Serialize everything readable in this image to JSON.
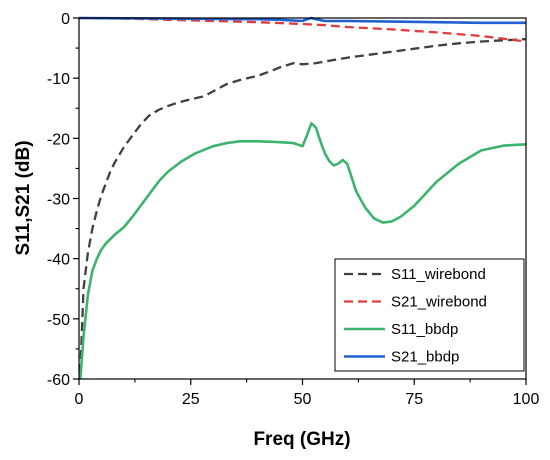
{
  "chart_data": {
    "type": "line",
    "title": "",
    "xlabel": "Freq (GHz)",
    "ylabel": "S11,S21 (dB)",
    "xlim": [
      0,
      100
    ],
    "ylim": [
      -60,
      0
    ],
    "xticks": [
      0,
      25,
      50,
      75,
      100
    ],
    "yticks": [
      0,
      -10,
      -20,
      -30,
      -40,
      -50,
      -60
    ],
    "grid": false,
    "legend_position": "bottom-right",
    "series": [
      {
        "name": "S11_wirebond",
        "color": "#404040",
        "dash": "dashed",
        "x": [
          0.3,
          1,
          2,
          3,
          4,
          5,
          6,
          7,
          8,
          10,
          12,
          14,
          16,
          18,
          20,
          22,
          25,
          28,
          30,
          33,
          36,
          40,
          43,
          45,
          48,
          50,
          53,
          56,
          60,
          65,
          70,
          75,
          80,
          85,
          90,
          95,
          100
        ],
        "y": [
          -59,
          -45,
          -39,
          -35,
          -32,
          -29.5,
          -27.5,
          -25.5,
          -24,
          -21.5,
          -19.5,
          -17.5,
          -16,
          -15.2,
          -14.6,
          -14.1,
          -13.5,
          -13,
          -12.2,
          -11,
          -10.3,
          -9.6,
          -8.8,
          -8.2,
          -7.5,
          -7.7,
          -7.5,
          -7.1,
          -6.6,
          -6.1,
          -5.6,
          -5.1,
          -4.6,
          -4.2,
          -3.9,
          -3.7,
          -3.5
        ]
      },
      {
        "name": "S21_wirebond",
        "color": "#e03c3c",
        "dash": "dashed",
        "x": [
          0,
          10,
          20,
          30,
          40,
          50,
          55,
          60,
          70,
          80,
          90,
          100
        ],
        "y": [
          0,
          -0.1,
          -0.3,
          -0.5,
          -0.7,
          -1.0,
          -1.2,
          -1.5,
          -1.9,
          -2.4,
          -3.0,
          -3.9
        ]
      },
      {
        "name": "S11_bbdp",
        "color": "#3cb46e",
        "dash": "solid",
        "x": [
          0.3,
          1,
          2,
          3,
          4,
          5,
          6,
          8,
          10,
          12,
          14,
          16,
          18,
          20,
          23,
          26,
          30,
          33,
          36,
          40,
          44,
          48,
          50,
          51,
          52,
          53,
          54,
          55,
          56,
          57,
          58,
          59,
          60,
          61,
          62,
          64,
          66,
          68,
          70,
          72,
          75,
          80,
          85,
          90,
          95,
          100
        ],
        "y": [
          -60,
          -53,
          -46,
          -42,
          -40,
          -38.5,
          -37.5,
          -36,
          -34.8,
          -33,
          -31,
          -29,
          -27,
          -25.5,
          -23.8,
          -22.5,
          -21.3,
          -20.8,
          -20.5,
          -20.5,
          -20.6,
          -20.8,
          -21.3,
          -19.5,
          -17.5,
          -18.2,
          -20.5,
          -22.5,
          -23.8,
          -24.5,
          -24.2,
          -23.6,
          -24.2,
          -26.5,
          -28.8,
          -31.5,
          -33.3,
          -34,
          -33.8,
          -33,
          -31.2,
          -27.2,
          -24.2,
          -22,
          -21.2,
          -21
        ]
      },
      {
        "name": "S21_bbdp",
        "color": "#2060d0",
        "dash": "solid",
        "x": [
          0,
          10,
          20,
          30,
          40,
          45,
          50,
          51,
          52,
          53,
          55,
          60,
          70,
          80,
          90,
          100
        ],
        "y": [
          0,
          -0.05,
          -0.1,
          -0.15,
          -0.2,
          -0.3,
          -0.5,
          -0.2,
          0,
          -0.2,
          -0.5,
          -0.5,
          -0.6,
          -0.7,
          -0.8,
          -0.8
        ]
      }
    ]
  }
}
